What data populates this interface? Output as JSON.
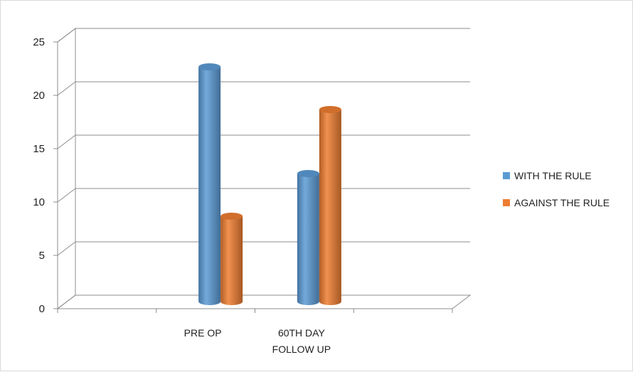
{
  "chart_data": {
    "type": "bar",
    "categories": [
      [
        "PRE OP"
      ],
      [
        "60TH DAY",
        "FOLLOW UP"
      ]
    ],
    "series": [
      {
        "name": "WITH THE RULE",
        "values": [
          22,
          12
        ],
        "color": "#5b9bd5"
      },
      {
        "name": "AGAINST THE RULE",
        "values": [
          8,
          18
        ],
        "color": "#ed7d31"
      }
    ],
    "ylim": [
      0,
      25
    ],
    "yticks": [
      0,
      5,
      10,
      15,
      20,
      25
    ],
    "grid": true,
    "legend_position": "right",
    "style": "3d-cylinder"
  }
}
